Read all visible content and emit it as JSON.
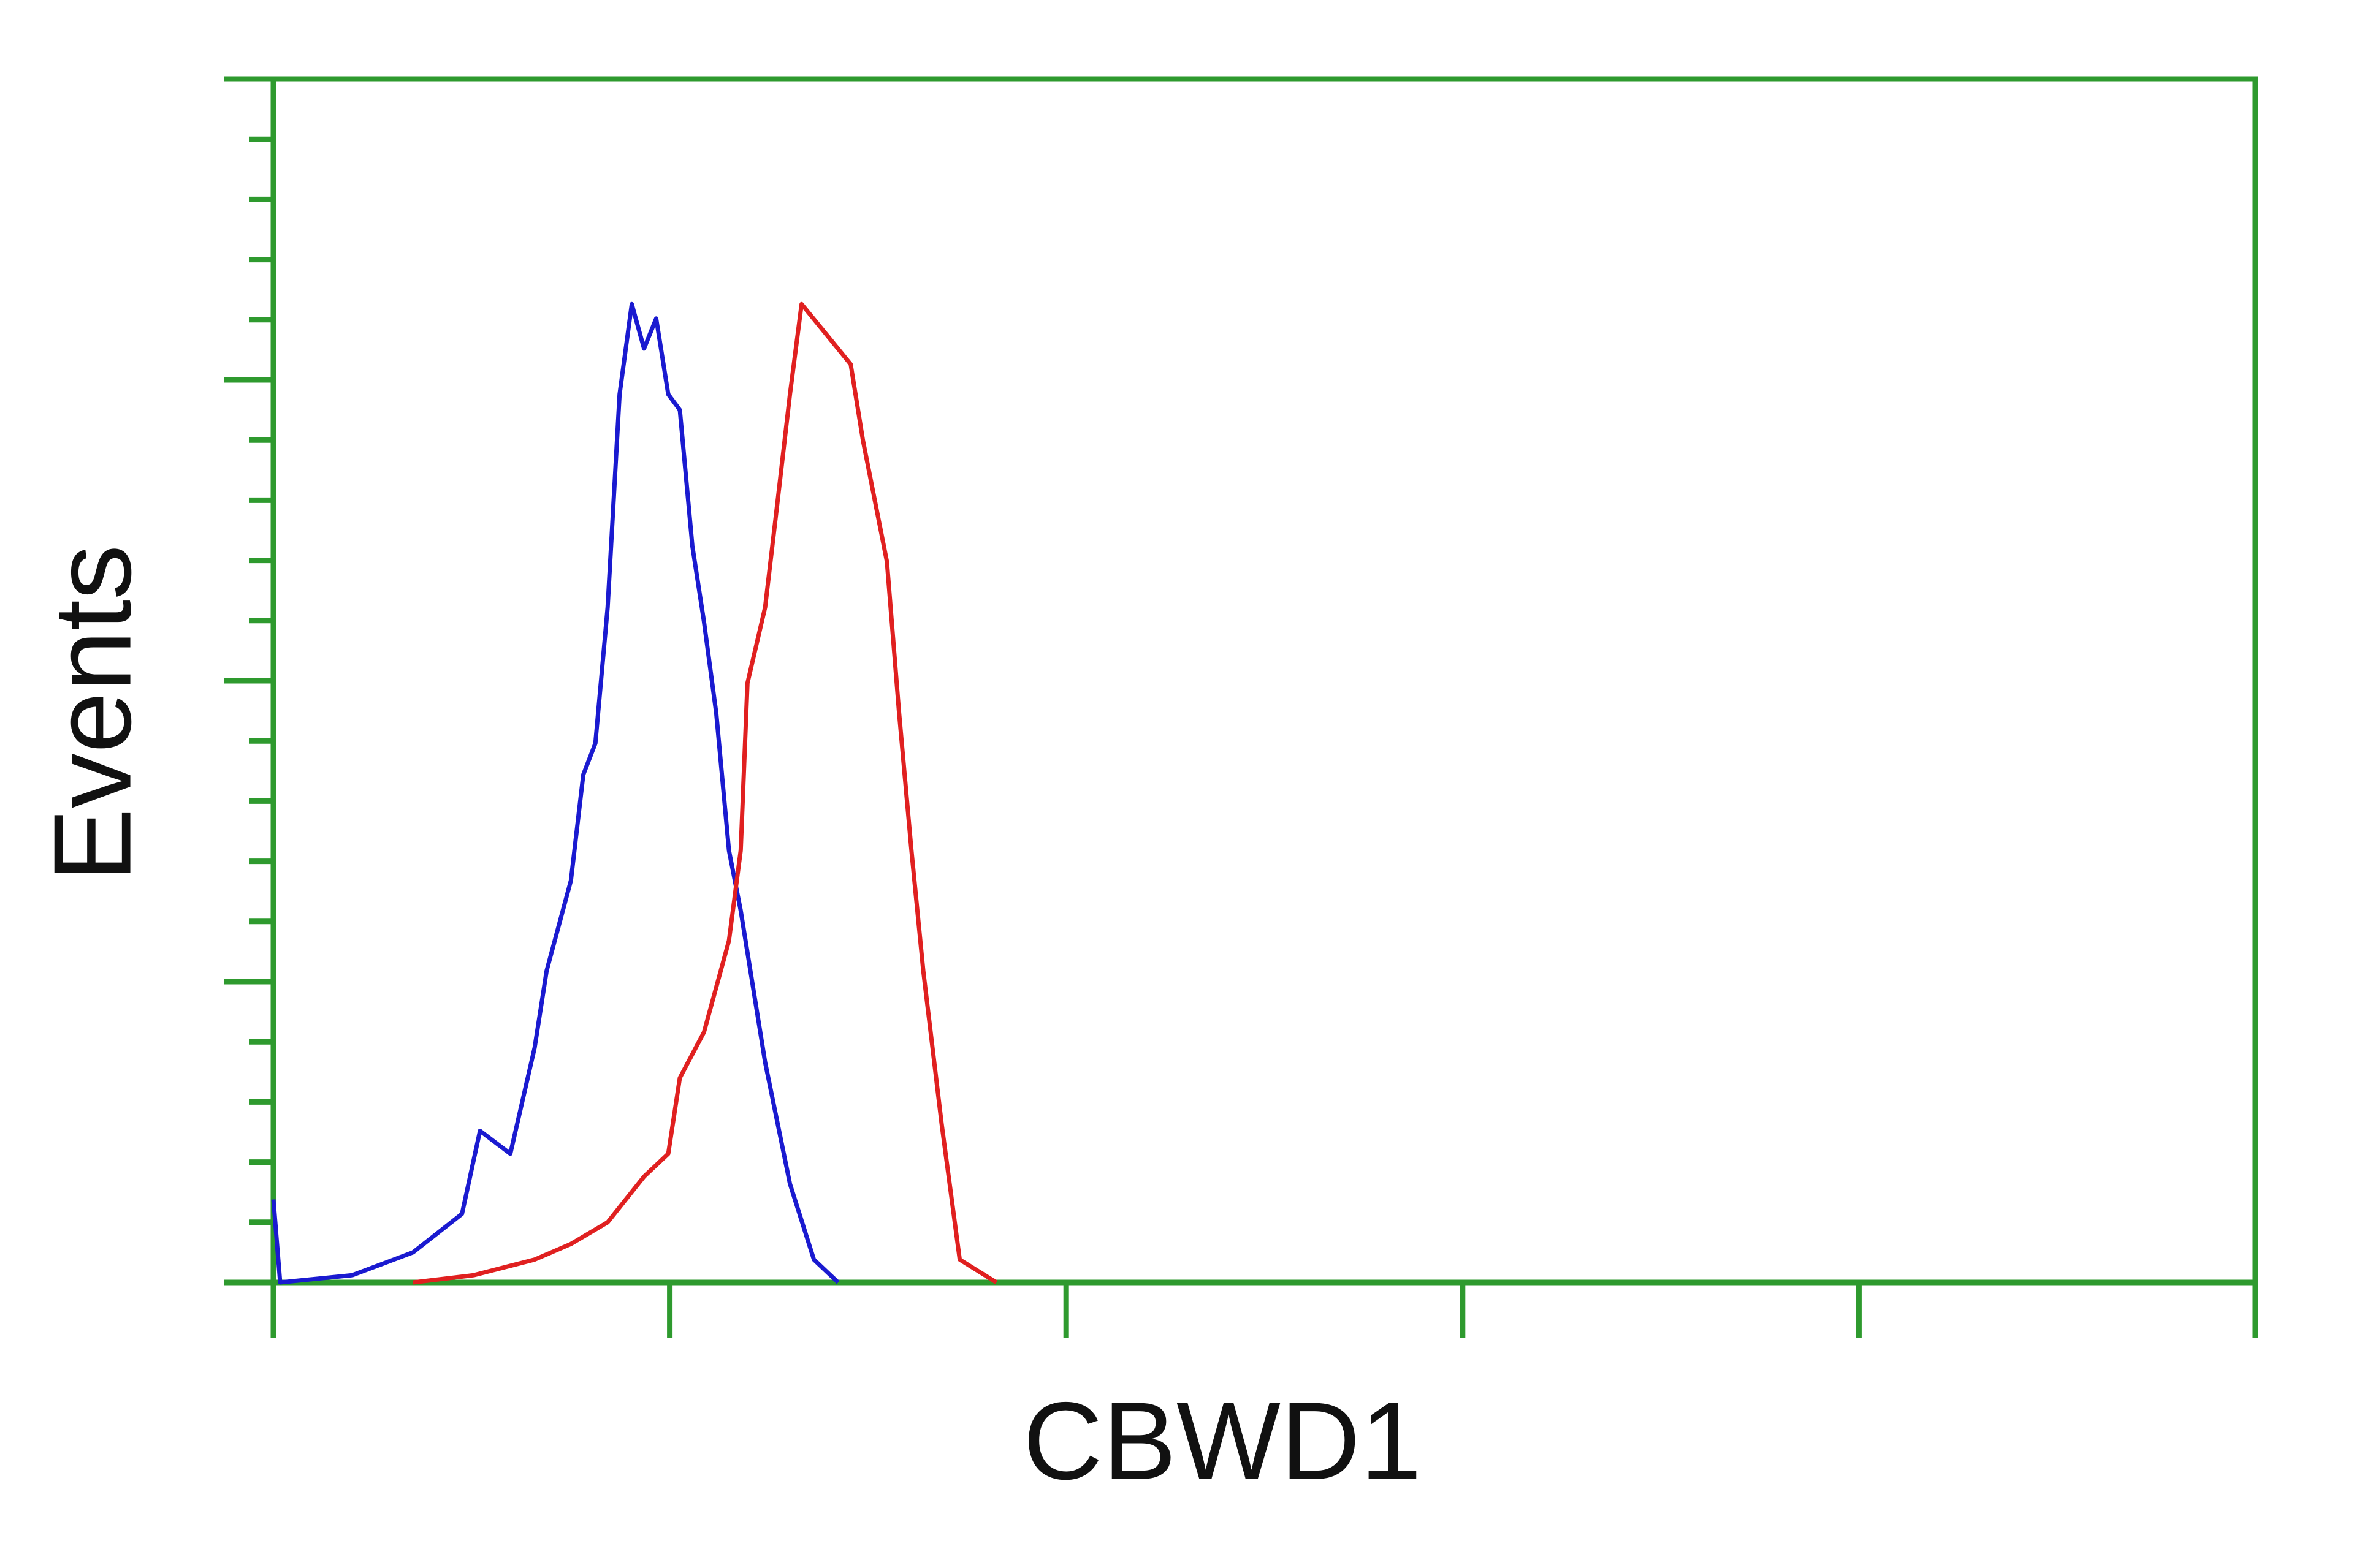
{
  "chart_data": {
    "type": "line",
    "x_label": "CBWD1",
    "y_label": "Events",
    "xlog": true,
    "xlim": [
      1,
      100000
    ],
    "xticks": [
      1,
      10,
      100,
      1000,
      10000,
      100000
    ],
    "ylim": [
      0,
      100
    ],
    "yticks": [
      0,
      5,
      10,
      15,
      20,
      25,
      30,
      35,
      40,
      45,
      50,
      55,
      60,
      65,
      70,
      75,
      80,
      85,
      90,
      95,
      100
    ],
    "axis_color": "#2e9a2e",
    "series": [
      {
        "color": "#1a1ad0",
        "x": [
          1,
          1.04,
          1.58,
          2.25,
          2.99,
          3.32,
          3.96,
          4.56,
          4.89,
          5.63,
          6.05,
          6.49,
          6.97,
          7.47,
          8.02,
          8.61,
          9.24,
          9.91,
          10.6,
          11.4,
          12.2,
          13.1,
          14.1,
          15.1,
          17.4,
          20.1,
          23.1,
          26.6
        ],
        "values": [
          6.9,
          0,
          0.6,
          2.5,
          5.7,
          12.6,
          10.7,
          19.5,
          25.9,
          33.4,
          42.2,
          44.8,
          56.1,
          73.8,
          81.3,
          77.6,
          80.1,
          73.8,
          72.5,
          61.2,
          54.9,
          47.3,
          35.9,
          30.9,
          18.3,
          8.2,
          1.9,
          0
        ]
      },
      {
        "color": "#e02020",
        "x": [
          2.25,
          3.2,
          4.56,
          5.63,
          6.97,
          8.61,
          9.91,
          10.6,
          12.2,
          14.1,
          15.1,
          15.7,
          17.4,
          18.7,
          20.1,
          21.5,
          24.8,
          28.6,
          30.7,
          35.3,
          37.9,
          40.7,
          43.6,
          48.5,
          53.9,
          66.7
        ],
        "values": [
          0,
          0.6,
          1.9,
          3.2,
          5.0,
          8.8,
          10.7,
          17.0,
          20.8,
          28.4,
          35.9,
          49.8,
          56.1,
          64.9,
          73.8,
          81.3,
          78.8,
          76.3,
          70.0,
          59.9,
          47.3,
          35.9,
          25.9,
          13.2,
          1.9,
          0
        ]
      }
    ]
  }
}
